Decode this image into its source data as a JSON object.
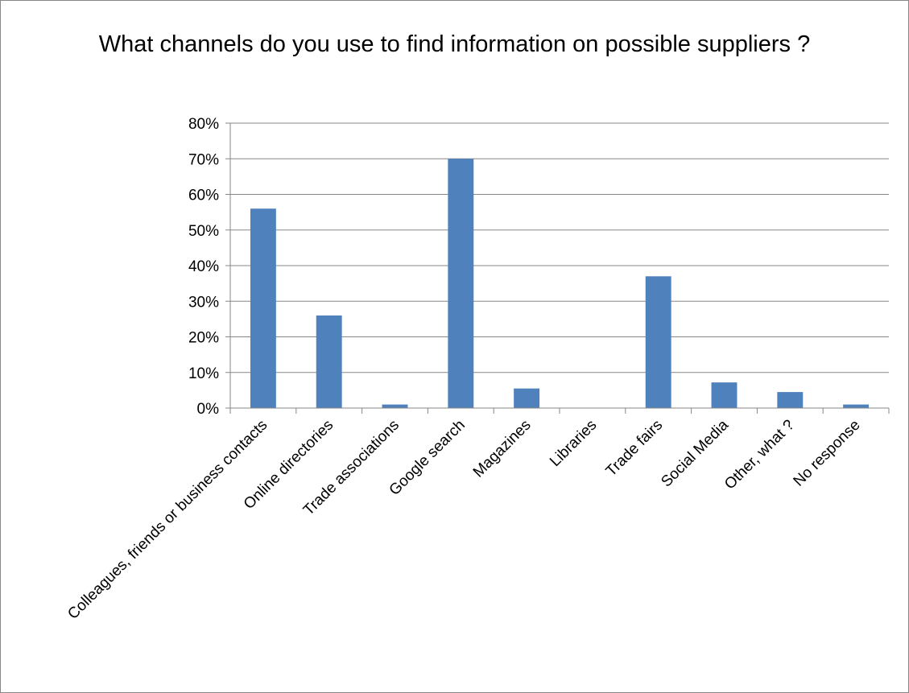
{
  "chart_data": {
    "type": "bar",
    "title": "What channels do you use to find information on possible suppliers ?",
    "categories": [
      "Colleagues, friends or business contacts",
      "Online directories",
      "Trade associations",
      "Google search",
      "Magazines",
      "Libraries",
      "Trade fairs",
      "Social Media",
      "Other, what ?",
      "No response"
    ],
    "values": [
      0.56,
      0.26,
      0.01,
      0.7,
      0.055,
      0.0,
      0.37,
      0.072,
      0.045,
      0.01
    ],
    "y_ticks": [
      "0%",
      "10%",
      "20%",
      "30%",
      "40%",
      "50%",
      "60%",
      "70%",
      "80%"
    ],
    "ylim": [
      0,
      0.8
    ],
    "xlabel": "",
    "ylabel": "",
    "grid": true,
    "legend": "none",
    "bar_color": "#4f81bd",
    "grid_color": "#878787",
    "frame_color": "#878787"
  }
}
